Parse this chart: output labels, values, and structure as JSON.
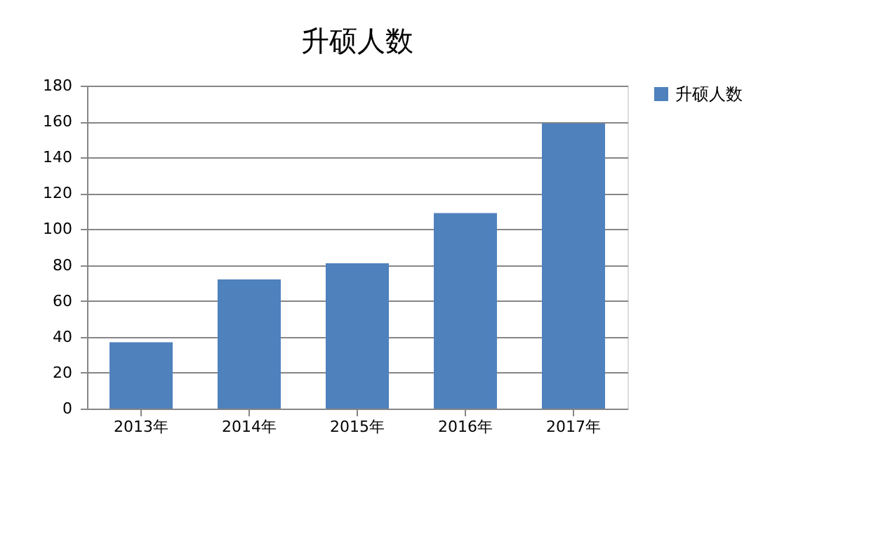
{
  "chart_data": {
    "type": "bar",
    "title": "升硕人数",
    "categories": [
      "2013年",
      "2014年",
      "2015年",
      "2016年",
      "2017年"
    ],
    "series": [
      {
        "name": "升硕人数",
        "color": "#4f81bd",
        "values": [
          37,
          72,
          81,
          109,
          159
        ]
      }
    ],
    "ylim": [
      0,
      180
    ],
    "yticks": [
      0,
      20,
      40,
      60,
      80,
      100,
      120,
      140,
      160,
      180
    ],
    "grid": "y",
    "legend": "right"
  }
}
